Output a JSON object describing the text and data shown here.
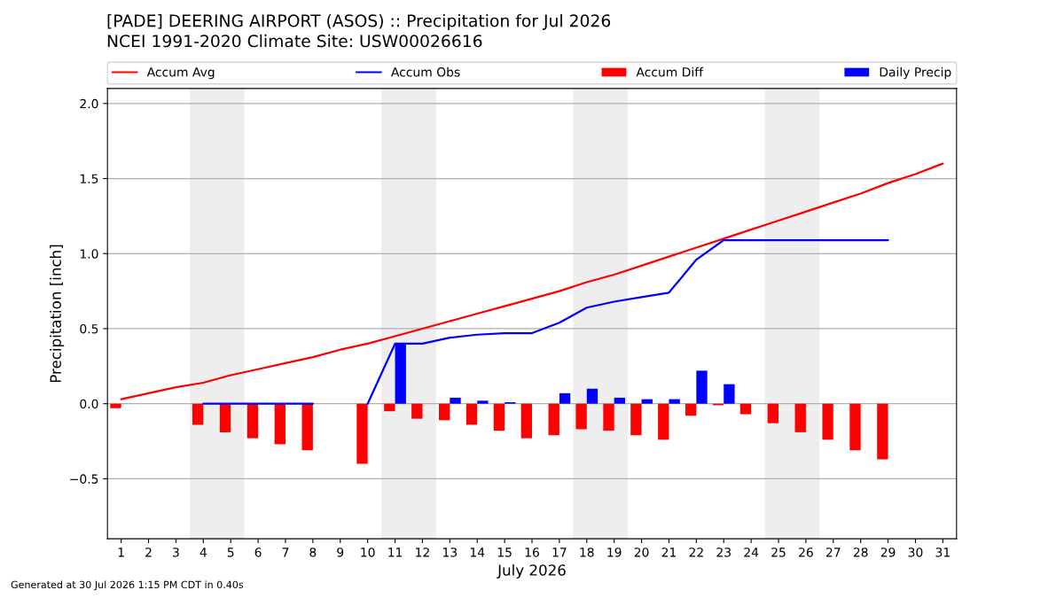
{
  "chart_data": {
    "type": "line",
    "title": "[PADE] DEERING AIRPORT (ASOS) :: Precipitation for Jul 2026",
    "subtitle": "NCEI 1991-2020 Climate Site: USW00026616",
    "xlabel": "July 2026",
    "ylabel": "Precipitation [inch]",
    "x": [
      1,
      2,
      3,
      4,
      5,
      6,
      7,
      8,
      9,
      10,
      11,
      12,
      13,
      14,
      15,
      16,
      17,
      18,
      19,
      20,
      21,
      22,
      23,
      24,
      25,
      26,
      27,
      28,
      29,
      30,
      31
    ],
    "series": [
      {
        "name": "Accum Avg",
        "color": "#ff0000",
        "values": [
          0.03,
          0.07,
          0.11,
          0.14,
          0.19,
          0.23,
          0.27,
          0.31,
          0.36,
          0.4,
          0.45,
          0.5,
          0.55,
          0.6,
          0.65,
          0.7,
          0.75,
          0.81,
          0.86,
          0.92,
          0.98,
          1.04,
          1.1,
          1.16,
          1.22,
          1.28,
          1.34,
          1.4,
          1.47,
          1.53,
          1.6
        ]
      },
      {
        "name": "Accum Obs",
        "color": "#0000ff",
        "values": [
          null,
          null,
          null,
          0.0,
          0.0,
          0.0,
          0.0,
          0.0,
          null,
          0.0,
          0.4,
          0.4,
          0.44,
          0.46,
          0.47,
          0.47,
          0.54,
          0.64,
          0.68,
          0.71,
          0.74,
          0.96,
          1.09,
          1.09,
          1.09,
          1.09,
          1.09,
          1.09,
          1.09,
          null,
          null
        ]
      },
      {
        "name": "Accum Diff",
        "type": "bar",
        "color": "#ff0000",
        "values": [
          -0.03,
          null,
          null,
          -0.14,
          -0.19,
          -0.23,
          -0.27,
          -0.31,
          null,
          -0.4,
          -0.05,
          -0.1,
          -0.11,
          -0.14,
          -0.18,
          -0.23,
          -0.21,
          -0.17,
          -0.18,
          -0.21,
          -0.24,
          -0.08,
          -0.01,
          -0.07,
          -0.13,
          -0.19,
          -0.24,
          -0.31,
          -0.37,
          null,
          null
        ]
      },
      {
        "name": "Daily Precip",
        "type": "bar",
        "color": "#0000ff",
        "values": [
          null,
          null,
          null,
          null,
          null,
          null,
          null,
          null,
          null,
          null,
          0.4,
          null,
          0.04,
          0.02,
          0.01,
          null,
          0.07,
          0.1,
          0.04,
          0.03,
          0.03,
          0.22,
          0.13,
          null,
          null,
          null,
          null,
          null,
          null,
          null,
          null
        ]
      }
    ],
    "xlim": [
      0.5,
      31.5
    ],
    "xticks": [
      1,
      2,
      3,
      4,
      5,
      6,
      7,
      8,
      9,
      10,
      11,
      12,
      13,
      14,
      15,
      16,
      17,
      18,
      19,
      20,
      21,
      22,
      23,
      24,
      25,
      26,
      27,
      28,
      29,
      30,
      31
    ],
    "ylim": [
      -0.9,
      2.1
    ],
    "yticks": [
      {
        "value": -0.5,
        "label": "−0.5"
      },
      {
        "value": 0,
        "label": "0.0"
      },
      {
        "value": 0.5,
        "label": "0.5"
      },
      {
        "value": 1,
        "label": "1.0"
      },
      {
        "value": 1.5,
        "label": "1.5"
      },
      {
        "value": 2,
        "label": "2.0"
      }
    ],
    "grid": "y",
    "legend": "top",
    "bands": [
      {
        "axis": "x",
        "from": 3.5,
        "to": 5.5,
        "color": "#eeeeee"
      },
      {
        "axis": "x",
        "from": 10.5,
        "to": 12.5,
        "color": "#eeeeee"
      },
      {
        "axis": "x",
        "from": 17.5,
        "to": 19.5,
        "color": "#eeeeee"
      },
      {
        "axis": "x",
        "from": 24.5,
        "to": 26.5,
        "color": "#eeeeee"
      }
    ],
    "annotations": [
      "Generated at 30 Jul 2026 1:15 PM CDT in 0.40s"
    ]
  }
}
